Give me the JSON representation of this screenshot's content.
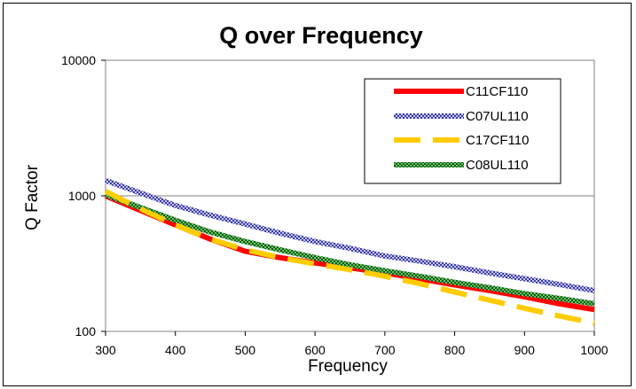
{
  "chart_data": {
    "type": "line",
    "title": "Q over Frequency",
    "xlabel": "Frequency",
    "ylabel": "Q Factor",
    "xlim": [
      300,
      1000
    ],
    "ylim": [
      100,
      10000
    ],
    "yscale": "log",
    "x_ticks": [
      "300",
      "400",
      "500",
      "600",
      "700",
      "800",
      "900",
      "1000"
    ],
    "y_ticks": [
      "100",
      "1000",
      "10000"
    ],
    "grid": "horizontal major",
    "legend_position": "top-right",
    "series": [
      {
        "name": "C11CF110",
        "color": "#ff0000",
        "style": "solid",
        "x": [
          300,
          350,
          400,
          450,
          500,
          550,
          600,
          650,
          700,
          750,
          800,
          850,
          900,
          950,
          1000
        ],
        "y": [
          1000,
          780,
          610,
          480,
          390,
          350,
          320,
          295,
          270,
          245,
          220,
          200,
          180,
          160,
          145
        ]
      },
      {
        "name": "C07UL110",
        "color": "#1c1c8c",
        "style": "patterned",
        "x": [
          300,
          350,
          400,
          450,
          500,
          550,
          600,
          650,
          700,
          750,
          800,
          850,
          900,
          950,
          1000
        ],
        "y": [
          1300,
          1050,
          850,
          720,
          620,
          530,
          460,
          410,
          360,
          330,
          300,
          270,
          245,
          222,
          200
        ]
      },
      {
        "name": "C17CF110",
        "color": "#ffcc00",
        "style": "dashed",
        "x": [
          300,
          350,
          400,
          450,
          500,
          550,
          600,
          650,
          700,
          750,
          800,
          850,
          900,
          950,
          1000
        ],
        "y": [
          1080,
          800,
          610,
          480,
          400,
          350,
          315,
          285,
          255,
          225,
          195,
          170,
          148,
          130,
          115
        ]
      },
      {
        "name": "C08UL110",
        "color": "#107010",
        "style": "patterned",
        "x": [
          300,
          350,
          400,
          450,
          500,
          550,
          600,
          650,
          700,
          750,
          800,
          850,
          900,
          950,
          1000
        ],
        "y": [
          1020,
          820,
          660,
          540,
          460,
          400,
          350,
          310,
          280,
          255,
          230,
          210,
          190,
          175,
          160
        ]
      }
    ]
  }
}
